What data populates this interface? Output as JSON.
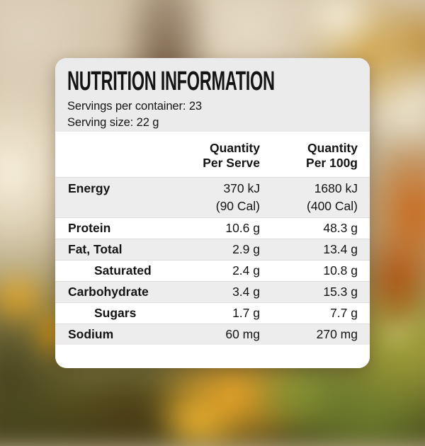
{
  "panel": {
    "title": "NUTRITION INFORMATION",
    "servings_per_container": "Servings per container: 23",
    "serving_size": "Serving size: 22 g",
    "columns": {
      "per_serve": {
        "line1": "Quantity",
        "line2": "Per Serve"
      },
      "per_100g": {
        "line1": "Quantity",
        "line2": "Per 100g"
      }
    },
    "rows": [
      {
        "label": "Energy",
        "per_serve": [
          "370 kJ",
          "(90 Cal)"
        ],
        "per_100g": [
          "1680 kJ",
          "(400 Cal)"
        ],
        "indent": false,
        "shaded": true
      },
      {
        "label": "Protein",
        "per_serve": [
          "10.6 g"
        ],
        "per_100g": [
          "48.3 g"
        ],
        "indent": false,
        "shaded": false
      },
      {
        "label": "Fat, Total",
        "per_serve": [
          "2.9 g"
        ],
        "per_100g": [
          "13.4 g"
        ],
        "indent": false,
        "shaded": true
      },
      {
        "label": "Saturated",
        "per_serve": [
          "2.4 g"
        ],
        "per_100g": [
          "10.8 g"
        ],
        "indent": true,
        "shaded": false
      },
      {
        "label": "Carbohydrate",
        "per_serve": [
          "3.4 g"
        ],
        "per_100g": [
          "15.3 g"
        ],
        "indent": false,
        "shaded": true
      },
      {
        "label": "Sugars",
        "per_serve": [
          "1.7 g"
        ],
        "per_100g": [
          "7.7 g"
        ],
        "indent": true,
        "shaded": false
      },
      {
        "label": "Sodium",
        "per_serve": [
          "60 mg"
        ],
        "per_100g": [
          "270 mg"
        ],
        "indent": false,
        "shaded": true
      }
    ],
    "colors": {
      "card_bg": "#ffffff",
      "header_bg": "#ebebeb",
      "shaded_row_bg": "#ededed",
      "row_divider": "#dcdcdc",
      "text": "#141414"
    }
  }
}
